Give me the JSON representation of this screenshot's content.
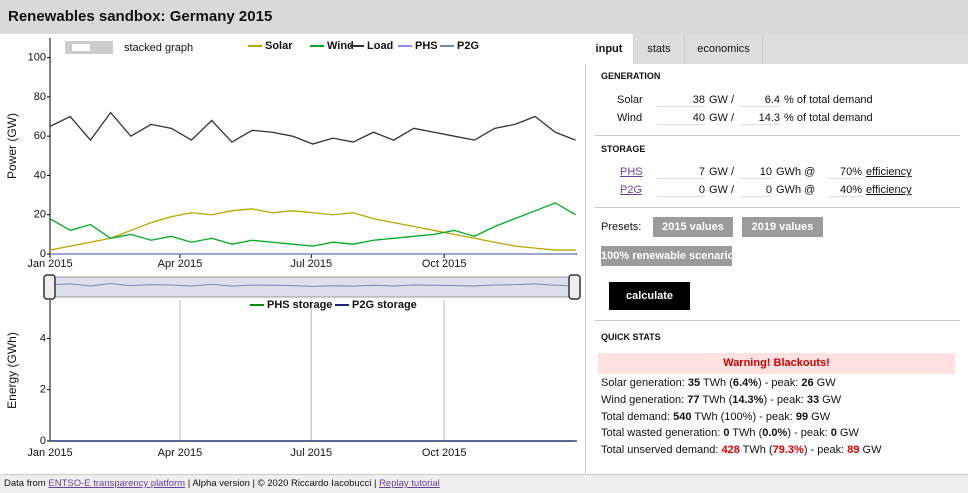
{
  "header": {
    "title": "Renewables sandbox: Germany 2015"
  },
  "controls": {
    "stacked_graph": "stacked graph"
  },
  "chart_data": [
    {
      "type": "line",
      "ylabel": "Power (GW)",
      "x": [
        0,
        14,
        28,
        42,
        56,
        70,
        84,
        98,
        112,
        126,
        140,
        154,
        168,
        182,
        196,
        210,
        224,
        238,
        252,
        266,
        280,
        294,
        308,
        322,
        336,
        350,
        364
      ],
      "xlim": [
        0,
        365
      ],
      "xticks": [
        {
          "value": 0,
          "label": "Jan 2015"
        },
        {
          "value": 90,
          "label": "Apr 2015"
        },
        {
          "value": 181,
          "label": "Jul 2015"
        },
        {
          "value": 273,
          "label": "Oct 2015"
        }
      ],
      "ylim": [
        0,
        110
      ],
      "yticks": [
        0,
        20,
        40,
        60,
        80,
        100
      ],
      "grid": false,
      "series": [
        {
          "name": "Solar",
          "color": "#b8a600",
          "values": [
            2,
            4,
            6,
            8,
            12,
            16,
            19,
            21,
            20,
            22,
            23,
            21,
            22,
            21,
            20,
            21,
            18,
            16,
            14,
            12,
            10,
            8,
            6,
            4,
            3,
            2,
            2
          ]
        },
        {
          "name": "Wind",
          "color": "#00a825",
          "values": [
            18,
            12,
            15,
            8,
            10,
            7,
            9,
            6,
            8,
            5,
            7,
            6,
            5,
            4,
            6,
            5,
            7,
            8,
            9,
            10,
            12,
            9,
            14,
            18,
            22,
            26,
            20
          ]
        },
        {
          "name": "Load",
          "color": "#333333",
          "values": [
            65,
            70,
            58,
            72,
            60,
            66,
            64,
            58,
            68,
            57,
            63,
            62,
            60,
            56,
            59,
            57,
            62,
            58,
            64,
            62,
            60,
            58,
            64,
            66,
            70,
            62,
            58
          ]
        },
        {
          "name": "PHS",
          "color": "#8a8aff",
          "values": [
            0,
            0,
            0,
            0,
            0,
            0,
            0,
            0,
            0,
            0,
            0,
            0,
            0,
            0,
            0,
            0,
            0,
            0,
            0,
            0,
            0,
            0,
            0,
            0,
            0,
            0,
            0
          ]
        },
        {
          "name": "P2G",
          "color": "#7086b0",
          "values": [
            0,
            0,
            0,
            0,
            0,
            0,
            0,
            0,
            0,
            0,
            0,
            0,
            0,
            0,
            0,
            0,
            0,
            0,
            0,
            0,
            0,
            0,
            0,
            0,
            0,
            0,
            0
          ]
        }
      ]
    },
    {
      "type": "line",
      "ylabel": "Energy (GWh)",
      "x": [
        0,
        364
      ],
      "xlim": [
        0,
        365
      ],
      "xticks": [
        {
          "value": 0,
          "label": "Jan 2015"
        },
        {
          "value": 90,
          "label": "Apr 2015"
        },
        {
          "value": 181,
          "label": "Jul 2015"
        },
        {
          "value": 273,
          "label": "Oct 2015"
        }
      ],
      "ylim": [
        0,
        5.5
      ],
      "yticks": [
        0,
        2,
        4
      ],
      "grid": true,
      "series": [
        {
          "name": "PHS storage",
          "color": "#008a00",
          "values": [
            0,
            0
          ]
        },
        {
          "name": "P2G storage",
          "color": "#1a237e",
          "values": [
            0,
            0
          ]
        }
      ]
    }
  ],
  "tabs": [
    "input",
    "stats",
    "economics"
  ],
  "generation": {
    "heading": "GENERATION",
    "rows": [
      {
        "name": "Solar",
        "power": "38",
        "power_unit": "GW /",
        "share": "6.4",
        "share_unit": "% of total demand"
      },
      {
        "name": "Wind",
        "power": "40",
        "power_unit": "GW /",
        "share": "14.3",
        "share_unit": "% of total demand"
      }
    ]
  },
  "storage": {
    "heading": "STORAGE",
    "rows": [
      {
        "name": "PHS",
        "power": "7",
        "power_unit": "GW /",
        "energy": "10",
        "energy_unit": "GWh @",
        "efficiency": "70%",
        "efficiency_label": "efficiency"
      },
      {
        "name": "P2G",
        "power": "0",
        "power_unit": "GW /",
        "energy": "0",
        "energy_unit": "GWh @",
        "efficiency": "40%",
        "efficiency_label": "efficiency"
      }
    ]
  },
  "presets": {
    "label": "Presets:",
    "buttons": [
      "2015 values",
      "2019 values",
      "100% renewable scenario"
    ]
  },
  "calculate": "calculate",
  "quick_stats": {
    "heading": "QUICK STATS",
    "warning": "Warning! Blackouts!",
    "lines": [
      {
        "alert": false,
        "segments": [
          "Solar generation: ",
          "35",
          " TWh (",
          "6.4%",
          ") - peak: ",
          "26",
          " GW"
        ]
      },
      {
        "alert": false,
        "segments": [
          "Wind generation: ",
          "77",
          " TWh (",
          "14.3%",
          ") - peak: ",
          "33",
          " GW"
        ]
      },
      {
        "alert": false,
        "segments": [
          "Total demand: ",
          "540",
          " TWh (100%) - peak: ",
          "99",
          " GW"
        ]
      },
      {
        "alert": false,
        "segments": [
          "Total wasted generation: ",
          "0",
          " TWh (",
          "0.0%",
          ") - peak: ",
          "0",
          " GW"
        ]
      },
      {
        "alert": true,
        "segments": [
          "Total unserved demand: ",
          "428",
          " TWh (",
          "79.3%",
          ") - peak: ",
          "89",
          " GW"
        ]
      }
    ]
  },
  "footer": {
    "prefix": "Data from ",
    "source_link": "ENTSO-E transparency platform",
    "middle": " | Alpha version | © 2020 Riccardo Iacobucci | ",
    "tutorial_link": "Replay tutorial"
  }
}
